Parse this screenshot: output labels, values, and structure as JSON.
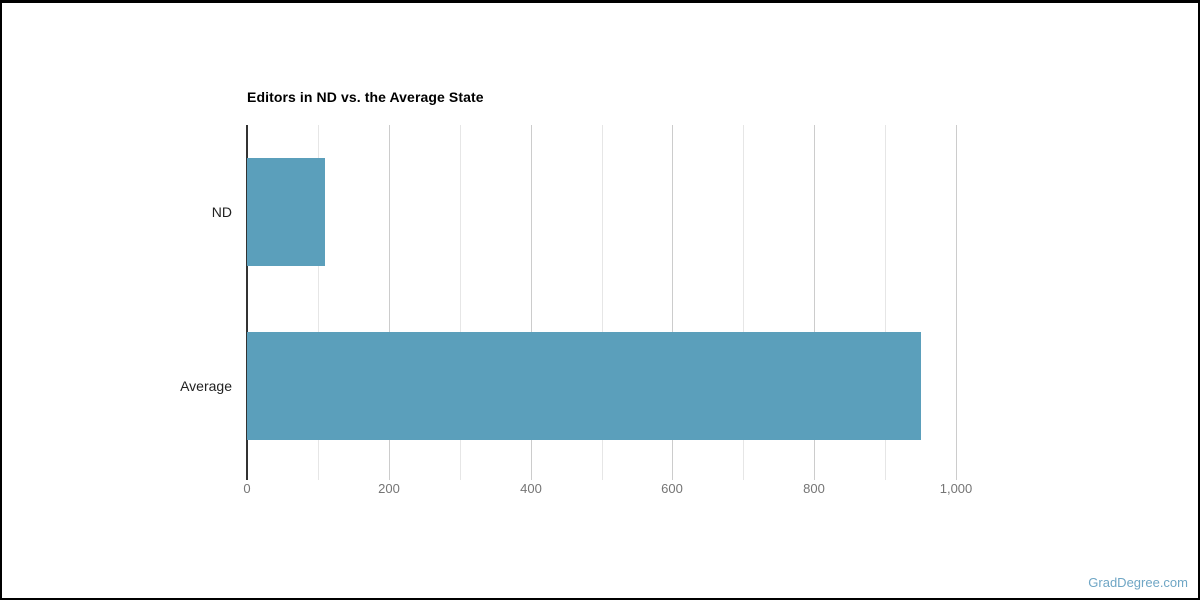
{
  "page": {
    "watermark": "GradDegree.com",
    "background_color": "#ffffff",
    "frame_border_color": "#000000"
  },
  "chart_data": {
    "type": "bar",
    "orientation": "horizontal",
    "title": "Editors in ND vs. the Average State",
    "categories": [
      "ND",
      "Average"
    ],
    "values": [
      110,
      950
    ],
    "xlabel": "",
    "ylabel": "",
    "xlim": [
      0,
      1100
    ],
    "x_major_ticks": [
      0,
      200,
      400,
      600,
      800,
      1000
    ],
    "x_tick_labels": [
      "0",
      "200",
      "400",
      "600",
      "800",
      "1,000"
    ],
    "x_minor_step": 100,
    "grid": true,
    "legend_position": "none",
    "bar_color": "#5b9fbb",
    "colors": {
      "axis_line": "#333333",
      "major_gridline": "#cccccc",
      "minor_gridline": "#e6e6e6",
      "tick_label": "#757575",
      "category_label": "#222222",
      "title": "#000000",
      "watermark": "#6fa6c5"
    }
  }
}
